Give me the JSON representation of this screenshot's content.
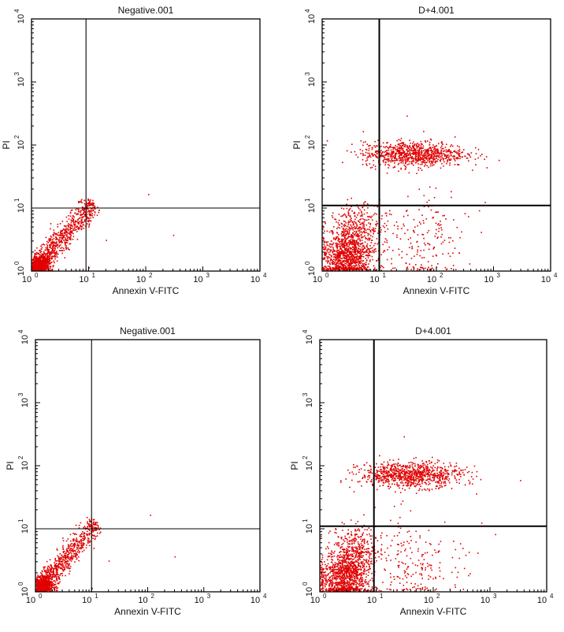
{
  "chart_data": [
    {
      "type": "scatter",
      "title": "Negative.001",
      "xlabel": "Annexin V-FITC",
      "ylabel": "PI",
      "xscale": "log",
      "yscale": "log",
      "xlim": [
        1,
        10000
      ],
      "ylim": [
        1,
        10000
      ],
      "xticks": [
        {
          "base": "10",
          "exp": "0"
        },
        {
          "base": "10",
          "exp": "1"
        },
        {
          "base": "10",
          "exp": "2"
        },
        {
          "base": "10",
          "exp": "3"
        },
        {
          "base": "10",
          "exp": "4"
        }
      ],
      "yticks": [
        {
          "base": "10",
          "exp": "0"
        },
        {
          "base": "10",
          "exp": "1"
        },
        {
          "base": "10",
          "exp": "2"
        },
        {
          "base": "10",
          "exp": "3"
        },
        {
          "base": "10",
          "exp": "4"
        }
      ],
      "quadrant_gates": {
        "x": 9,
        "y": 10
      },
      "grid": false,
      "point_color": "#e00000",
      "populations": [
        {
          "type": "diagonal",
          "x": [
            1.05,
            12
          ],
          "y": [
            1,
            12
          ],
          "spread": 0.06,
          "n": 900
        },
        {
          "type": "blob",
          "center": [
            1.4,
            1.2
          ],
          "spread": [
            0.08,
            0.07
          ],
          "n": 500
        }
      ],
      "outliers": [
        [
          110,
          16
        ],
        [
          20,
          3
        ],
        [
          300,
          3.6
        ],
        [
          10,
          1.1
        ],
        [
          14,
          10
        ]
      ]
    },
    {
      "type": "scatter",
      "title": "D+4.001",
      "xlabel": "Annexin V-FITC",
      "ylabel": "PI",
      "xscale": "log",
      "yscale": "log",
      "xlim": [
        1,
        10000
      ],
      "ylim": [
        1,
        10000
      ],
      "xticks": [
        {
          "base": "10",
          "exp": "0"
        },
        {
          "base": "10",
          "exp": "1"
        },
        {
          "base": "10",
          "exp": "2"
        },
        {
          "base": "10",
          "exp": "3"
        },
        {
          "base": "10",
          "exp": "4"
        }
      ],
      "yticks": [
        {
          "base": "10",
          "exp": "0"
        },
        {
          "base": "10",
          "exp": "1"
        },
        {
          "base": "10",
          "exp": "2"
        },
        {
          "base": "10",
          "exp": "3"
        },
        {
          "base": "10",
          "exp": "4"
        }
      ],
      "quadrant_gates": {
        "x": 10,
        "y": 11
      },
      "grid": false,
      "point_color": "#e00000",
      "populations": [
        {
          "type": "blob",
          "center": [
            40,
            70
          ],
          "spread": [
            0.45,
            0.1
          ],
          "n": 900
        },
        {
          "type": "blob",
          "center": [
            2.5,
            1.6
          ],
          "spread": [
            0.22,
            0.2
          ],
          "n": 900
        },
        {
          "type": "blob",
          "center": [
            4,
            4
          ],
          "spread": [
            0.2,
            0.22
          ],
          "n": 400
        },
        {
          "type": "blob",
          "center": [
            40,
            3
          ],
          "spread": [
            0.45,
            0.35
          ],
          "n": 220
        }
      ],
      "outliers": [
        [
          700,
          12
        ],
        [
          600,
          4
        ],
        [
          30,
          280
        ],
        [
          6,
          100
        ]
      ]
    },
    {
      "type": "scatter",
      "title": "Negative.001",
      "xlabel": "Annexin V-FITC",
      "ylabel": "PI",
      "xscale": "log",
      "yscale": "log",
      "xlim": [
        1,
        10000
      ],
      "ylim": [
        1,
        10000
      ],
      "xticks": [
        {
          "base": "10",
          "exp": "0"
        },
        {
          "base": "10",
          "exp": "1"
        },
        {
          "base": "10",
          "exp": "2"
        },
        {
          "base": "10",
          "exp": "3"
        },
        {
          "base": "10",
          "exp": "4"
        }
      ],
      "yticks": [
        {
          "base": "10",
          "exp": "0"
        },
        {
          "base": "10",
          "exp": "1"
        },
        {
          "base": "10",
          "exp": "2"
        },
        {
          "base": "10",
          "exp": "3"
        },
        {
          "base": "10",
          "exp": "4"
        }
      ],
      "quadrant_gates": {
        "x": 10,
        "y": 10
      },
      "grid": false,
      "point_color": "#e00000",
      "populations": [
        {
          "type": "diagonal",
          "x": [
            1.05,
            12
          ],
          "y": [
            1,
            12
          ],
          "spread": 0.06,
          "n": 900
        },
        {
          "type": "blob",
          "center": [
            1.4,
            1.2
          ],
          "spread": [
            0.08,
            0.07
          ],
          "n": 500
        }
      ],
      "outliers": [
        [
          110,
          16
        ],
        [
          20,
          3
        ],
        [
          300,
          3.5
        ],
        [
          10,
          1.1
        ],
        [
          14,
          10
        ]
      ]
    },
    {
      "type": "scatter",
      "title": "D+4.001",
      "xlabel": "Annexin V-FITC",
      "ylabel": "PI",
      "xscale": "log",
      "yscale": "log",
      "xlim": [
        1,
        10000
      ],
      "ylim": [
        1,
        10000
      ],
      "xticks": [
        {
          "base": "10",
          "exp": "0"
        },
        {
          "base": "10",
          "exp": "1"
        },
        {
          "base": "10",
          "exp": "2"
        },
        {
          "base": "10",
          "exp": "3"
        },
        {
          "base": "10",
          "exp": "4"
        }
      ],
      "yticks": [
        {
          "base": "10",
          "exp": "0"
        },
        {
          "base": "10",
          "exp": "1"
        },
        {
          "base": "10",
          "exp": "2"
        },
        {
          "base": "10",
          "exp": "3"
        },
        {
          "base": "10",
          "exp": "4"
        }
      ],
      "quadrant_gates": {
        "x": 9,
        "y": 11
      },
      "grid": false,
      "point_color": "#e00000",
      "populations": [
        {
          "type": "blob",
          "center": [
            40,
            70
          ],
          "spread": [
            0.45,
            0.1
          ],
          "n": 900
        },
        {
          "type": "blob",
          "center": [
            2.5,
            1.6
          ],
          "spread": [
            0.22,
            0.2
          ],
          "n": 900
        },
        {
          "type": "blob",
          "center": [
            4,
            4
          ],
          "spread": [
            0.2,
            0.22
          ],
          "n": 400
        },
        {
          "type": "blob",
          "center": [
            40,
            3
          ],
          "spread": [
            0.45,
            0.35
          ],
          "n": 220
        }
      ],
      "outliers": [
        [
          700,
          12
        ],
        [
          600,
          4
        ],
        [
          30,
          280
        ],
        [
          6,
          100
        ]
      ]
    }
  ]
}
